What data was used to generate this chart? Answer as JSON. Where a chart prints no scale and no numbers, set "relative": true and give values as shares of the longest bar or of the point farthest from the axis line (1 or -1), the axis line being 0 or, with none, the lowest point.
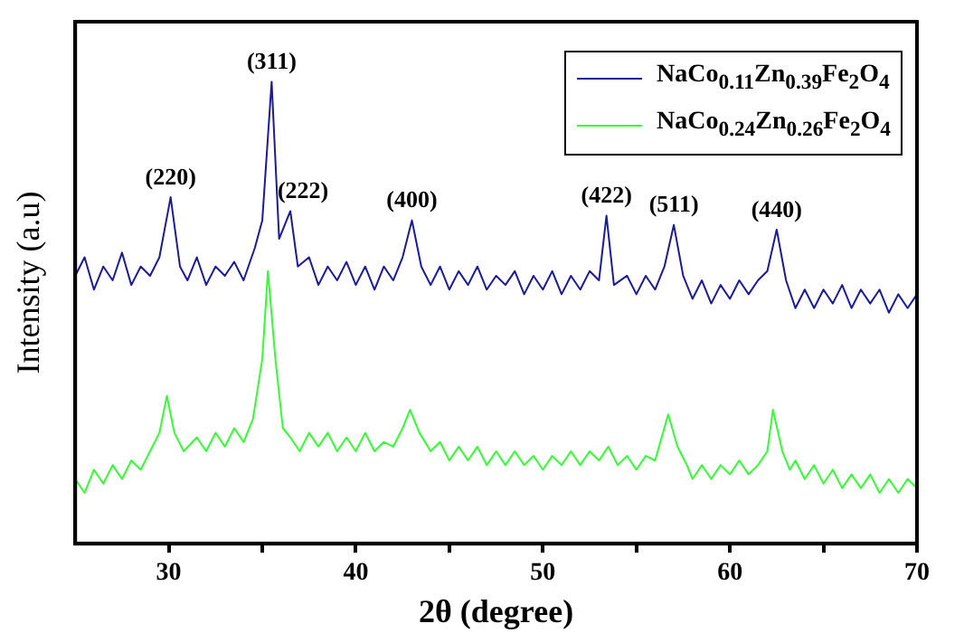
{
  "chart_data": {
    "type": "line",
    "xlabel": "2θ (degree)",
    "ylabel": "Intensity (a.u)",
    "relative": true,
    "xlim": [
      25,
      70
    ],
    "xticks": [
      30,
      {
        "value": 35,
        "label": null
      },
      40,
      {
        "value": 45,
        "label": null
      },
      50,
      {
        "value": 55,
        "label": null
      },
      60,
      {
        "value": 65,
        "label": null
      },
      70
    ],
    "grid": false,
    "legend": "top right",
    "marker": "none",
    "line_style": "solid",
    "series": [
      {
        "name": "NaCo$_{0.11}$Zn$_{0.39}$Fe$_{2}$O$_{4}$",
        "color": "#1a1a9a",
        "x": [
          25,
          25.5,
          26,
          26.5,
          27,
          27.5,
          28,
          28.5,
          29,
          29.5,
          30.1,
          30.6,
          31,
          31.5,
          32,
          32.5,
          33,
          33.5,
          34,
          34.6,
          35.0,
          35.5,
          35.9,
          36.5,
          36.9,
          37.5,
          38,
          38.5,
          39,
          39.5,
          40,
          40.5,
          41,
          41.5,
          42,
          42.5,
          43.0,
          43.5,
          44,
          44.5,
          45,
          45.5,
          46,
          46.5,
          47,
          47.5,
          48,
          48.5,
          49,
          49.5,
          50,
          50.5,
          51,
          51.5,
          52,
          52.5,
          53,
          53.4,
          53.8,
          54.5,
          55,
          55.5,
          56,
          56.5,
          57.0,
          57.5,
          58,
          58.5,
          59,
          59.5,
          60,
          60.5,
          61,
          61.5,
          62,
          62.5,
          63,
          63.5,
          64,
          64.5,
          65,
          65.5,
          66,
          66.5,
          67,
          67.5,
          68,
          68.5,
          69,
          69.5,
          70
        ],
        "values": [
          0.58,
          0.62,
          0.55,
          0.6,
          0.57,
          0.63,
          0.56,
          0.6,
          0.58,
          0.62,
          0.75,
          0.6,
          0.57,
          0.62,
          0.56,
          0.6,
          0.58,
          0.61,
          0.57,
          0.64,
          0.7,
          1.0,
          0.66,
          0.72,
          0.6,
          0.62,
          0.56,
          0.6,
          0.57,
          0.61,
          0.56,
          0.6,
          0.55,
          0.6,
          0.57,
          0.62,
          0.7,
          0.6,
          0.56,
          0.6,
          0.55,
          0.59,
          0.56,
          0.6,
          0.55,
          0.58,
          0.56,
          0.59,
          0.54,
          0.58,
          0.55,
          0.59,
          0.54,
          0.58,
          0.55,
          0.59,
          0.57,
          0.71,
          0.56,
          0.58,
          0.54,
          0.58,
          0.55,
          0.6,
          0.69,
          0.58,
          0.53,
          0.57,
          0.52,
          0.56,
          0.53,
          0.57,
          0.54,
          0.57,
          0.59,
          0.68,
          0.57,
          0.51,
          0.55,
          0.51,
          0.55,
          0.52,
          0.56,
          0.51,
          0.55,
          0.52,
          0.55,
          0.5,
          0.54,
          0.51,
          0.54
        ]
      },
      {
        "name": "NaCo$_{0.24}$Zn$_{0.26}$Fe$_{2}$O$_{4}$",
        "color": "#33ff33",
        "x": [
          25,
          25.5,
          26,
          26.5,
          27,
          27.5,
          28,
          28.5,
          29,
          29.5,
          29.9,
          30.3,
          30.8,
          31.5,
          32,
          32.5,
          33,
          33.5,
          34,
          34.5,
          35.0,
          35.3,
          35.7,
          36.1,
          36.5,
          37,
          37.5,
          38,
          38.5,
          39,
          39.5,
          40,
          40.5,
          41,
          41.5,
          42,
          42.5,
          42.9,
          43.4,
          44,
          44.5,
          45,
          45.5,
          46,
          46.5,
          47,
          47.5,
          48,
          48.5,
          49,
          49.5,
          50,
          50.5,
          51,
          51.5,
          52,
          52.5,
          53,
          53.5,
          54,
          54.5,
          55,
          55.5,
          56,
          56.7,
          57.2,
          57.7,
          58,
          58.5,
          59,
          59.5,
          60,
          60.5,
          61,
          61.5,
          62,
          62.3,
          62.8,
          63.2,
          63.5,
          64,
          64.5,
          65,
          65.5,
          66,
          66.5,
          67,
          67.5,
          68,
          68.5,
          69,
          69.5,
          70
        ],
        "values": [
          0.14,
          0.11,
          0.16,
          0.13,
          0.17,
          0.14,
          0.18,
          0.16,
          0.2,
          0.24,
          0.32,
          0.24,
          0.2,
          0.23,
          0.2,
          0.24,
          0.21,
          0.25,
          0.22,
          0.27,
          0.4,
          0.59,
          0.4,
          0.25,
          0.23,
          0.2,
          0.24,
          0.21,
          0.24,
          0.2,
          0.23,
          0.2,
          0.24,
          0.2,
          0.22,
          0.21,
          0.25,
          0.29,
          0.24,
          0.2,
          0.22,
          0.18,
          0.21,
          0.18,
          0.21,
          0.17,
          0.2,
          0.17,
          0.2,
          0.17,
          0.19,
          0.16,
          0.19,
          0.17,
          0.2,
          0.17,
          0.2,
          0.18,
          0.21,
          0.17,
          0.19,
          0.16,
          0.19,
          0.18,
          0.28,
          0.21,
          0.17,
          0.14,
          0.17,
          0.14,
          0.17,
          0.15,
          0.18,
          0.15,
          0.17,
          0.2,
          0.29,
          0.2,
          0.16,
          0.18,
          0.14,
          0.17,
          0.13,
          0.16,
          0.12,
          0.15,
          0.12,
          0.15,
          0.11,
          0.14,
          0.11,
          0.14,
          0.12
        ]
      }
    ],
    "annotations": [
      {
        "text": "(220)",
        "x": 30.1,
        "y": 0.75
      },
      {
        "text": "(311)",
        "x": 35.5,
        "y": 1.0
      },
      {
        "text": "(222)",
        "x": 36.5,
        "y": 0.72
      },
      {
        "text": "(400)",
        "x": 43.0,
        "y": 0.7
      },
      {
        "text": "(422)",
        "x": 53.4,
        "y": 0.71
      },
      {
        "text": "(511)",
        "x": 57.0,
        "y": 0.69
      },
      {
        "text": "(440)",
        "x": 62.5,
        "y": 0.68
      }
    ]
  }
}
